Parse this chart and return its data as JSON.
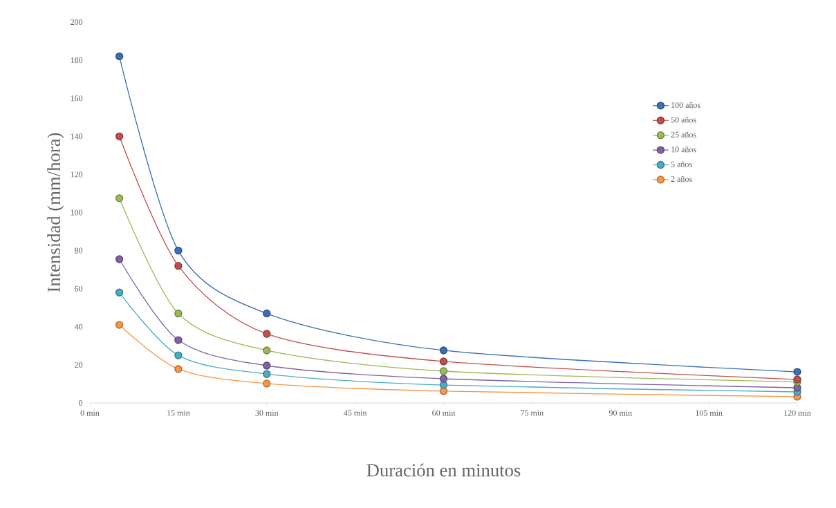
{
  "chart_data": {
    "type": "line",
    "xlabel": "Duración en minutos",
    "ylabel": "Intensidad (mm/hora)",
    "x": [
      5,
      15,
      30,
      60,
      120
    ],
    "series": [
      {
        "name": "100 años",
        "color": "#3d6fb4",
        "values": [
          182,
          80,
          47,
          27.6,
          16.3
        ]
      },
      {
        "name": "50 años",
        "color": "#c0504d",
        "values": [
          140,
          72,
          36.3,
          21.8,
          12.3
        ]
      },
      {
        "name": "25 años",
        "color": "#9bbb59",
        "values": [
          107.5,
          47,
          27.6,
          16.7,
          11
        ]
      },
      {
        "name": "10 años",
        "color": "#8064a2",
        "values": [
          75.5,
          33,
          19.6,
          12.7,
          8
        ]
      },
      {
        "name": "5 años",
        "color": "#4bacc6",
        "values": [
          58,
          25,
          15.2,
          9.4,
          5.8
        ]
      },
      {
        "name": "2 años",
        "color": "#f79646",
        "values": [
          41,
          17.8,
          10.2,
          6.2,
          3.3
        ]
      }
    ],
    "xlim": [
      0,
      120
    ],
    "ylim": [
      0,
      200
    ],
    "xticks": [
      {
        "value": 0,
        "label": "0 min"
      },
      {
        "value": 15,
        "label": "15 min"
      },
      {
        "value": 30,
        "label": "30 min"
      },
      {
        "value": 45,
        "label": "45 min"
      },
      {
        "value": 60,
        "label": "60 min"
      },
      {
        "value": 75,
        "label": "75 min"
      },
      {
        "value": 90,
        "label": "90 min"
      },
      {
        "value": 105,
        "label": "105 min"
      },
      {
        "value": 120,
        "label": "120 min"
      }
    ],
    "yticks": [
      0,
      20,
      40,
      60,
      80,
      100,
      120,
      140,
      160,
      180,
      200
    ],
    "legend": "top right",
    "marker": "circle",
    "line_style": "solid",
    "grid": false
  }
}
